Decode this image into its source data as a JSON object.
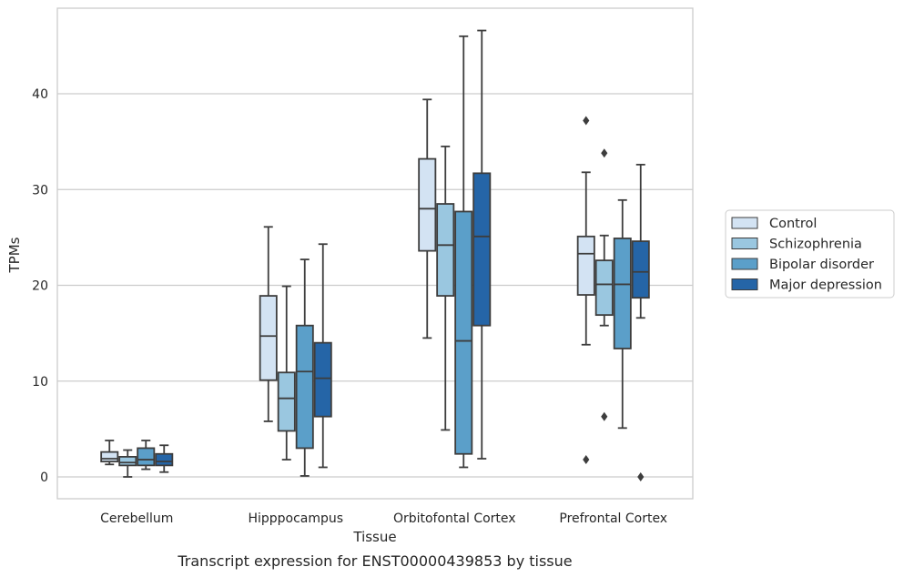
{
  "caption": "Transcript expression for ENST00000439853 by tissue",
  "chart_data": {
    "type": "box",
    "xlabel": "Tissue",
    "ylabel": "TPMs",
    "ylim": [
      -2.2,
      49
    ],
    "yticks": [
      0,
      10,
      20,
      30,
      40
    ],
    "grid": "horizontal",
    "legend_position": "right",
    "categories": [
      "Cerebellum",
      "Hipppocampus",
      "Orbitofontal Cortex",
      "Prefrontal Cortex"
    ],
    "series": [
      {
        "name": "Control",
        "color": "#d3e3f3",
        "boxes": [
          {
            "whislo": 1.3,
            "q1": 1.6,
            "med": 1.9,
            "q3": 2.6,
            "whishi": 3.8,
            "fliers": []
          },
          {
            "whislo": 5.8,
            "q1": 10.1,
            "med": 14.7,
            "q3": 18.9,
            "whishi": 26.1,
            "fliers": []
          },
          {
            "whislo": 14.5,
            "q1": 23.6,
            "med": 28.0,
            "q3": 33.2,
            "whishi": 39.4,
            "fliers": []
          },
          {
            "whislo": 13.8,
            "q1": 19.0,
            "med": 23.3,
            "q3": 25.1,
            "whishi": 31.8,
            "fliers": [
              37.2,
              1.8
            ]
          }
        ]
      },
      {
        "name": "Schizophrenia",
        "color": "#9ac7e0",
        "boxes": [
          {
            "whislo": 0.0,
            "q1": 1.2,
            "med": 1.5,
            "q3": 2.1,
            "whishi": 2.8,
            "fliers": []
          },
          {
            "whislo": 1.8,
            "q1": 4.8,
            "med": 8.2,
            "q3": 10.9,
            "whishi": 19.9,
            "fliers": []
          },
          {
            "whislo": 4.9,
            "q1": 18.9,
            "med": 24.2,
            "q3": 28.5,
            "whishi": 34.5,
            "fliers": []
          },
          {
            "whislo": 15.8,
            "q1": 16.9,
            "med": 20.1,
            "q3": 22.6,
            "whishi": 25.2,
            "fliers": [
              33.8,
              6.3
            ]
          }
        ]
      },
      {
        "name": "Bipolar disorder",
        "color": "#5b9fc9",
        "boxes": [
          {
            "whislo": 0.8,
            "q1": 1.2,
            "med": 1.8,
            "q3": 3.0,
            "whishi": 3.8,
            "fliers": []
          },
          {
            "whislo": 0.1,
            "q1": 3.0,
            "med": 11.0,
            "q3": 15.8,
            "whishi": 22.7,
            "fliers": []
          },
          {
            "whislo": 1.0,
            "q1": 2.4,
            "med": 14.2,
            "q3": 27.7,
            "whishi": 46.0,
            "fliers": []
          },
          {
            "whislo": 5.1,
            "q1": 13.4,
            "med": 20.1,
            "q3": 24.9,
            "whishi": 28.9,
            "fliers": []
          }
        ]
      },
      {
        "name": "Major depression",
        "color": "#2565a7",
        "boxes": [
          {
            "whislo": 0.5,
            "q1": 1.2,
            "med": 1.6,
            "q3": 2.4,
            "whishi": 3.3,
            "fliers": []
          },
          {
            "whislo": 1.0,
            "q1": 6.3,
            "med": 10.3,
            "q3": 14.0,
            "whishi": 24.3,
            "fliers": []
          },
          {
            "whislo": 1.9,
            "q1": 15.8,
            "med": 25.1,
            "q3": 31.7,
            "whishi": 46.6,
            "fliers": []
          },
          {
            "whislo": 16.6,
            "q1": 18.7,
            "med": 21.4,
            "q3": 24.6,
            "whishi": 32.6,
            "fliers": [
              0.0
            ]
          }
        ]
      }
    ]
  }
}
